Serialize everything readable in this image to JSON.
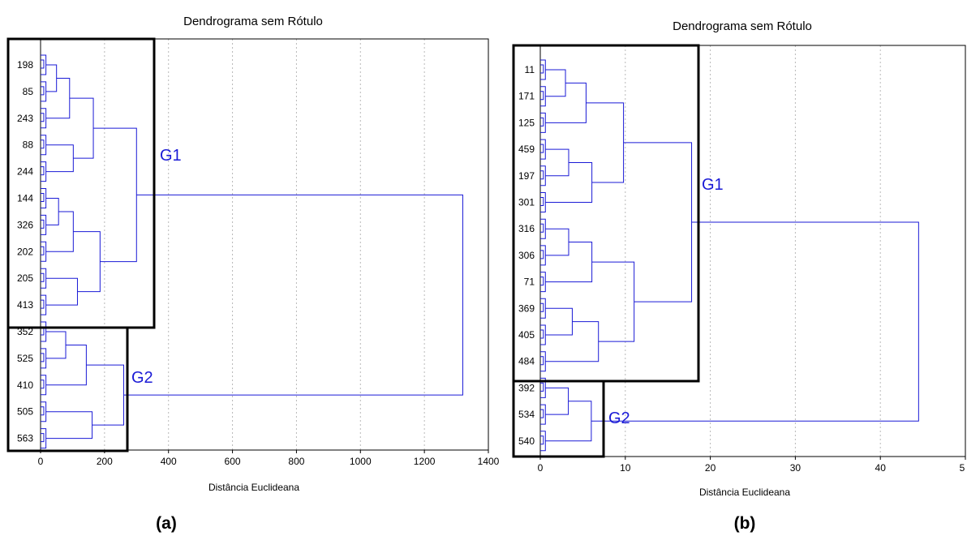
{
  "chart_data": [
    {
      "type": "dendrogram",
      "panel_label": "(a)",
      "title": "Dendrograma sem Rótulo",
      "xlabel": "Distância Euclideana",
      "xlim": [
        0,
        1400
      ],
      "x_ticks": [
        "0",
        "200",
        "400",
        "600",
        "800",
        "1000",
        "1200",
        "1400"
      ],
      "leaf_labels": [
        "198",
        "85",
        "243",
        "88",
        "244",
        "144",
        "326",
        "202",
        "205",
        "413",
        "352",
        "525",
        "410",
        "505",
        "563"
      ],
      "groups": [
        {
          "name": "G1",
          "leaf_range": [
            "198",
            "413"
          ],
          "merge_distance": 300
        },
        {
          "name": "G2",
          "leaf_range": [
            "352",
            "563"
          ],
          "merge_distance": 260
        }
      ],
      "root_merge_distance": 1320,
      "colors": {
        "lines": "#1a1ad6",
        "group_label": "#1a1ad6"
      }
    },
    {
      "type": "dendrogram",
      "panel_label": "(b)",
      "title": "Dendrograma sem Rótulo",
      "xlabel": "Distância Euclideana",
      "xlim": [
        0,
        50
      ],
      "x_ticks": [
        "0",
        "10",
        "20",
        "30",
        "40",
        "5"
      ],
      "leaf_labels": [
        "11",
        "171",
        "125",
        "459",
        "197",
        "301",
        "316",
        "306",
        "71",
        "369",
        "405",
        "484",
        "392",
        "534",
        "540"
      ],
      "groups": [
        {
          "name": "G1",
          "leaf_range": [
            "11",
            "484"
          ],
          "merge_distance": 17.8
        },
        {
          "name": "G2",
          "leaf_range": [
            "392",
            "540"
          ],
          "merge_distance": 6
        }
      ],
      "root_merge_distance": 44.5,
      "colors": {
        "lines": "#1a1ad6",
        "group_label": "#1a1ad6"
      }
    }
  ]
}
